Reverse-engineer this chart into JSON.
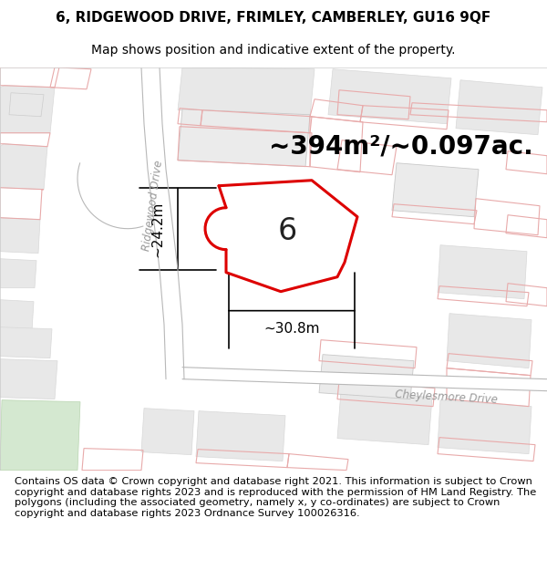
{
  "title_line1": "6, RIDGEWOOD DRIVE, FRIMLEY, CAMBERLEY, GU16 9QF",
  "title_line2": "Map shows position and indicative extent of the property.",
  "area_text": "~394m²/~0.097ac.",
  "label_number": "6",
  "dim_width": "~30.8m",
  "dim_height": "~24.2m",
  "road_label1": "Ridgewood Drive",
  "road_label2": "Cheylesmore Drive",
  "footer_text": "Contains OS data © Crown copyright and database right 2021. This information is subject to Crown copyright and database rights 2023 and is reproduced with the permission of HM Land Registry. The polygons (including the associated geometry, namely x, y co-ordinates) are subject to Crown copyright and database rights 2023 Ordnance Survey 100026316.",
  "boundary_color": "#dd0000",
  "boundary_lw": 2.2,
  "title_fontsize": 11,
  "subtitle_fontsize": 10,
  "footer_fontsize": 8.2,
  "area_fontsize": 20,
  "label_fontsize": 24,
  "dim_fontsize": 11,
  "map_bg": "#f8f8f8",
  "building_fill": "#e8e8e8",
  "building_fill2": "#ebebeb",
  "road_pink": "#f2c8c8",
  "road_gray": "#d8d8d8"
}
